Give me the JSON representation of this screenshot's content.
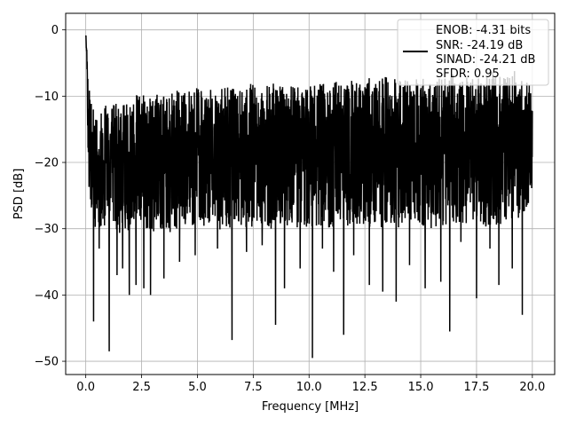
{
  "chart_data": {
    "type": "line",
    "xlabel": "Frequency [MHz]",
    "ylabel": "PSD [dB]",
    "xlim": [
      -0.9,
      21.0
    ],
    "ylim": [
      -52.0,
      2.5
    ],
    "grid": true,
    "x_ticks": [
      0.0,
      2.5,
      5.0,
      7.5,
      10.0,
      12.5,
      15.0,
      17.5,
      20.0
    ],
    "x_tick_labels": [
      "0.0",
      "2.5",
      "5.0",
      "7.5",
      "10.0",
      "12.5",
      "15.0",
      "17.5",
      "20.0"
    ],
    "y_ticks": [
      0,
      -10,
      -20,
      -30,
      -40,
      -50
    ],
    "y_tick_labels": [
      "0",
      "−10",
      "−20",
      "−30",
      "−40",
      "−50"
    ],
    "legend": {
      "placement": "top-right",
      "entries": [
        "ENOB: -4.31 bits",
        "SNR: -24.19 dB",
        "SINAD: -24.21 dB",
        "SFDR: 0.95"
      ]
    },
    "series": [
      {
        "color": "#000000",
        "x": [
          0.0,
          0.02,
          0.05,
          0.08,
          0.12,
          0.16,
          0.2,
          0.25,
          0.35,
          0.5,
          0.7,
          1.0,
          1.3,
          1.6,
          2.0,
          2.5,
          3.0,
          3.5,
          4.0,
          4.5,
          5.0,
          5.5,
          6.0,
          6.5,
          7.0,
          7.5,
          8.0,
          8.5,
          9.0,
          9.5,
          10.0,
          10.5,
          11.0,
          11.5,
          12.0,
          12.5,
          13.0,
          13.5,
          14.0,
          14.5,
          15.0,
          15.5,
          16.0,
          16.5,
          17.0,
          17.5,
          18.0,
          18.5,
          19.0,
          19.5,
          20.0
        ],
        "envelope_upper": [
          0.0,
          -1.0,
          -3.0,
          -5.0,
          -7.0,
          -8.5,
          -9.0,
          -10.5,
          -11.5,
          -11.8,
          -11.0,
          -11.5,
          -11.0,
          -10.5,
          -10.0,
          -9.5,
          -9.0,
          -9.5,
          -8.5,
          -9.0,
          -8.5,
          -9.0,
          -8.5,
          -8.0,
          -8.5,
          -8.0,
          -8.5,
          -8.0,
          -8.5,
          -8.0,
          -8.0,
          -7.5,
          -8.0,
          -7.5,
          -7.5,
          -7.0,
          -7.5,
          -7.0,
          -7.5,
          -7.0,
          -6.5,
          -7.0,
          -7.5,
          -6.5,
          -7.0,
          -6.5,
          -6.0,
          -6.5,
          -6.0,
          -6.5,
          -8.5
        ],
        "envelope_lower": [
          -2.0,
          -5.0,
          -10.0,
          -15.0,
          -22.0,
          -27.0,
          -29.0,
          -30.0,
          -31.0,
          -30.0,
          -30.5,
          -29.0,
          -30.0,
          -31.0,
          -30.0,
          -29.5,
          -30.5,
          -30.0,
          -31.0,
          -30.0,
          -29.5,
          -30.0,
          -30.5,
          -30.0,
          -29.5,
          -30.5,
          -30.0,
          -30.0,
          -29.5,
          -30.0,
          -30.0,
          -29.5,
          -30.0,
          -29.5,
          -30.0,
          -29.5,
          -30.0,
          -29.5,
          -30.0,
          -29.0,
          -29.5,
          -30.0,
          -29.5,
          -29.0,
          -29.5,
          -29.0,
          -30.0,
          -29.5,
          -29.0,
          -28.5,
          -25.0
        ],
        "dips": [
          {
            "x": 0.35,
            "y": -44.0
          },
          {
            "x": 0.6,
            "y": -33.0
          },
          {
            "x": 1.05,
            "y": -48.5
          },
          {
            "x": 1.4,
            "y": -37.0
          },
          {
            "x": 1.65,
            "y": -36.0
          },
          {
            "x": 1.95,
            "y": -40.0
          },
          {
            "x": 2.25,
            "y": -38.5
          },
          {
            "x": 2.6,
            "y": -39.0
          },
          {
            "x": 2.9,
            "y": -40.0
          },
          {
            "x": 3.5,
            "y": -37.5
          },
          {
            "x": 4.2,
            "y": -35.0
          },
          {
            "x": 4.9,
            "y": -34.0
          },
          {
            "x": 5.9,
            "y": -33.0
          },
          {
            "x": 6.55,
            "y": -46.8
          },
          {
            "x": 7.2,
            "y": -33.5
          },
          {
            "x": 7.9,
            "y": -32.5
          },
          {
            "x": 8.5,
            "y": -44.5
          },
          {
            "x": 8.9,
            "y": -39.0
          },
          {
            "x": 9.6,
            "y": -36.0
          },
          {
            "x": 10.15,
            "y": -49.5
          },
          {
            "x": 10.6,
            "y": -33.0
          },
          {
            "x": 11.1,
            "y": -36.5
          },
          {
            "x": 11.55,
            "y": -46.0
          },
          {
            "x": 12.0,
            "y": -34.0
          },
          {
            "x": 12.7,
            "y": -38.5
          },
          {
            "x": 13.3,
            "y": -39.5
          },
          {
            "x": 13.9,
            "y": -41.0
          },
          {
            "x": 14.5,
            "y": -35.5
          },
          {
            "x": 15.2,
            "y": -39.0
          },
          {
            "x": 15.9,
            "y": -38.0
          },
          {
            "x": 16.3,
            "y": -45.5
          },
          {
            "x": 16.8,
            "y": -32.0
          },
          {
            "x": 17.5,
            "y": -40.5
          },
          {
            "x": 18.1,
            "y": -33.0
          },
          {
            "x": 18.5,
            "y": -38.5
          },
          {
            "x": 19.1,
            "y": -36.0
          },
          {
            "x": 19.55,
            "y": -43.0
          }
        ]
      }
    ]
  }
}
